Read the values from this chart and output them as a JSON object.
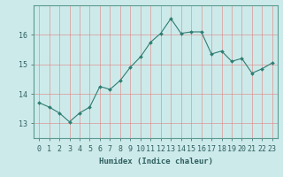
{
  "x": [
    0,
    1,
    2,
    3,
    4,
    5,
    6,
    7,
    8,
    9,
    10,
    11,
    12,
    13,
    14,
    15,
    16,
    17,
    18,
    19,
    20,
    21,
    22,
    23
  ],
  "y": [
    13.7,
    13.55,
    13.35,
    13.05,
    13.35,
    13.55,
    14.25,
    14.15,
    14.45,
    14.9,
    15.25,
    15.75,
    16.05,
    16.55,
    16.05,
    16.1,
    16.1,
    15.35,
    15.45,
    15.1,
    15.2,
    14.7,
    14.85,
    15.05
  ],
  "line_color": "#2e7d72",
  "marker_color": "#2e7d72",
  "bg_color": "#cdeaea",
  "grid_color": "#e08080",
  "xlabel": "Humidex (Indice chaleur)",
  "ylim": [
    12.5,
    17.0
  ],
  "xlim": [
    -0.5,
    23.5
  ],
  "yticks": [
    13,
    14,
    15,
    16
  ],
  "xticks": [
    0,
    1,
    2,
    3,
    4,
    5,
    6,
    7,
    8,
    9,
    10,
    11,
    12,
    13,
    14,
    15,
    16,
    17,
    18,
    19,
    20,
    21,
    22,
    23
  ],
  "xlabel_fontsize": 6.5,
  "tick_fontsize": 6,
  "fig_width": 3.2,
  "fig_height": 2.0,
  "dpi": 100
}
